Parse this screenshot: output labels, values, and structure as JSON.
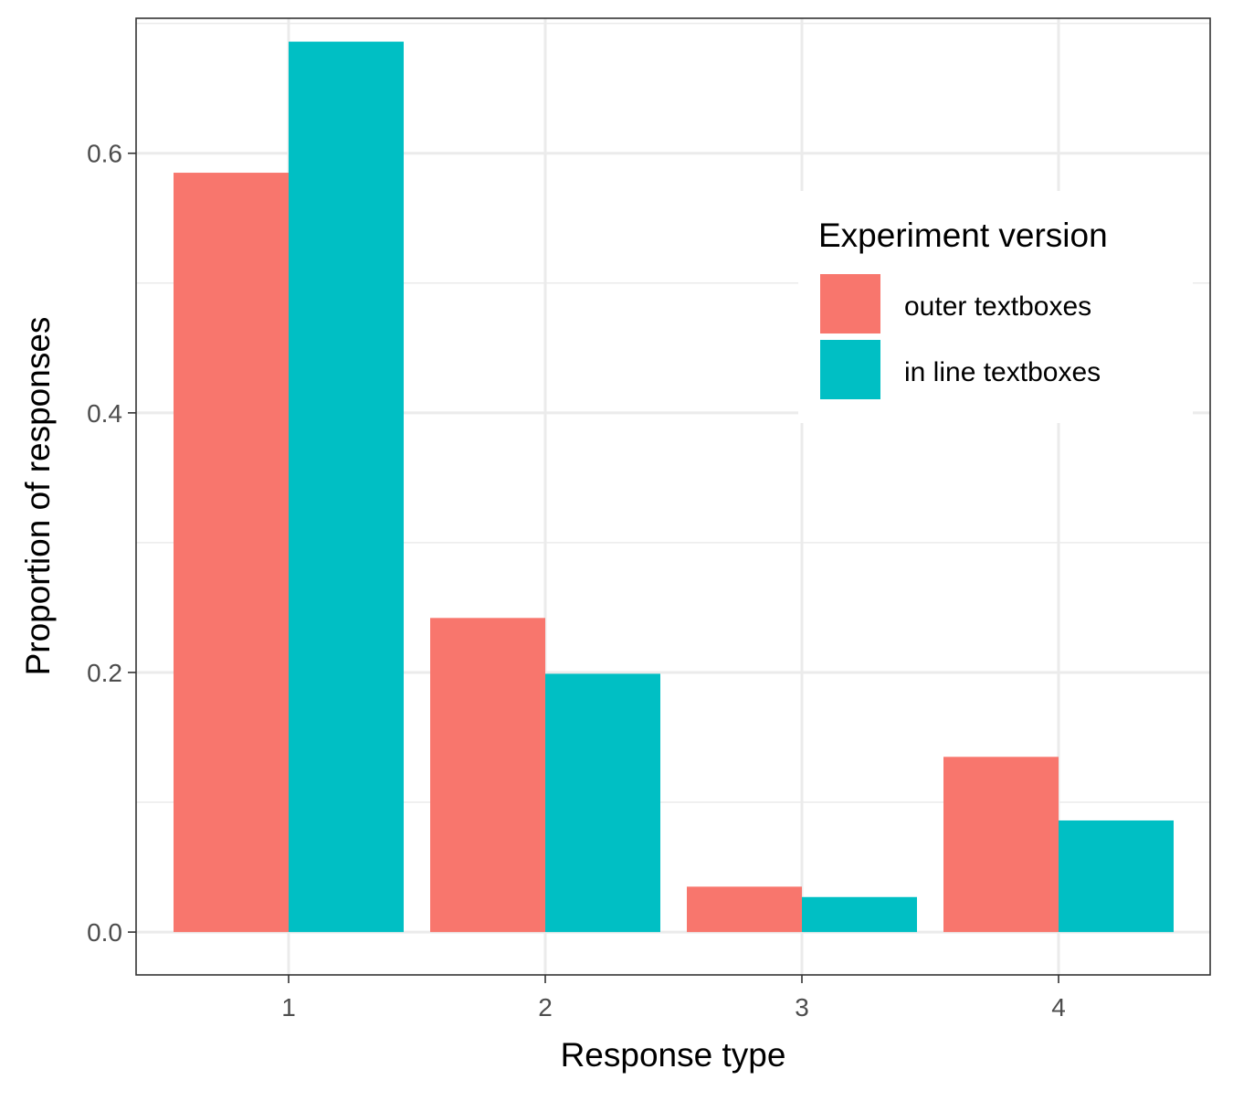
{
  "chart_data": {
    "type": "bar",
    "xlabel": "Response type",
    "ylabel": "Proportion of responses",
    "categories": [
      "1",
      "2",
      "3",
      "4"
    ],
    "series": [
      {
        "name": "outer textboxes",
        "color": "#F8766D",
        "values": [
          0.585,
          0.242,
          0.035,
          0.135
        ]
      },
      {
        "name": "in line textboxes",
        "color": "#00BFC4",
        "values": [
          0.686,
          0.199,
          0.027,
          0.086
        ]
      }
    ],
    "ylim": [
      -0.033,
      0.704
    ],
    "y_ticks": [
      "0.0",
      "0.2",
      "0.4",
      "0.6"
    ],
    "grid": true,
    "legend": {
      "title": "Experiment version",
      "position": "top-right"
    }
  }
}
